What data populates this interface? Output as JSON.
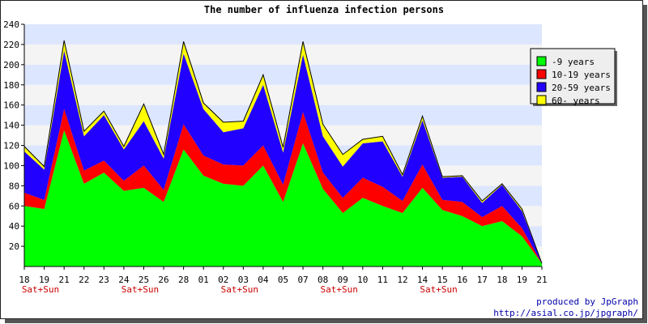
{
  "chart_data": {
    "type": "area",
    "stacked": true,
    "title": "The number of influenza infection persons",
    "xlabel": "",
    "ylabel": "",
    "ylim": [
      0,
      240
    ],
    "yticks": [
      20,
      40,
      60,
      80,
      100,
      120,
      140,
      160,
      180,
      200,
      220,
      240
    ],
    "categories": [
      "18",
      "19",
      "21",
      "22",
      "23",
      "24",
      "25",
      "26",
      "28",
      "01",
      "02",
      "03",
      "04",
      "05",
      "07",
      "08",
      "09",
      "10",
      "11",
      "12",
      "14",
      "15",
      "16",
      "17",
      "18",
      "19",
      "21"
    ],
    "secondary_labels": [
      {
        "category_index": 0,
        "text": "Sat+Sun"
      },
      {
        "category_index": 5,
        "text": "Sat+Sun"
      },
      {
        "category_index": 10,
        "text": "Sat+Sun"
      },
      {
        "category_index": 15,
        "text": "Sat+Sun"
      },
      {
        "category_index": 20,
        "text": "Sat+Sun"
      }
    ],
    "grid": true,
    "legend_position": "top-right",
    "series": [
      {
        "name": "-9 years",
        "color": "#00ff00",
        "values": [
          60,
          57,
          135,
          82,
          93,
          75,
          78,
          64,
          116,
          90,
          82,
          80,
          100,
          64,
          122,
          77,
          53,
          68,
          60,
          53,
          78,
          56,
          50,
          40,
          45,
          30,
          3
        ]
      },
      {
        "name": "10-19 years",
        "color": "#ff0000",
        "values": [
          13,
          9,
          21,
          13,
          12,
          10,
          22,
          12,
          25,
          20,
          19,
          20,
          20,
          17,
          31,
          16,
          15,
          20,
          19,
          12,
          23,
          10,
          14,
          9,
          15,
          8,
          0
        ]
      },
      {
        "name": "20-59 years",
        "color": "#2200ff",
        "values": [
          41,
          30,
          58,
          34,
          45,
          31,
          44,
          31,
          70,
          46,
          32,
          37,
          60,
          32,
          57,
          36,
          31,
          34,
          45,
          24,
          44,
          22,
          25,
          14,
          21,
          17,
          0
        ]
      },
      {
        "name": "60- years",
        "color": "#ffff00",
        "values": [
          5,
          3,
          10,
          5,
          4,
          3,
          17,
          4,
          12,
          6,
          10,
          7,
          10,
          5,
          13,
          12,
          12,
          4,
          5,
          2,
          4,
          1,
          1,
          2,
          1,
          2,
          0
        ]
      }
    ],
    "colors": {
      "band_a": "#dde6ff",
      "band_b": "#f4f4f4",
      "tick_red": "#cc0000",
      "credit_blue": "#0000aa"
    }
  },
  "credit": {
    "line1": "produced by JpGraph",
    "line2": "http://asial.co.jp/jpgraph/"
  }
}
